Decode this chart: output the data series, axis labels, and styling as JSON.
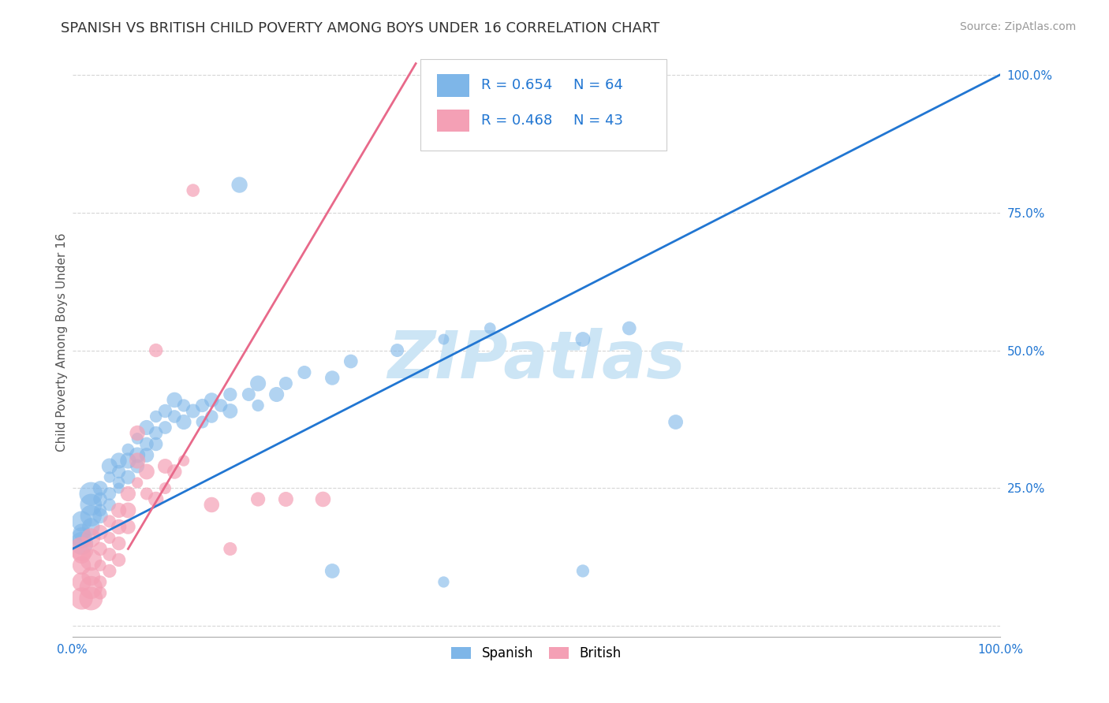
{
  "title": "SPANISH VS BRITISH CHILD POVERTY AMONG BOYS UNDER 16 CORRELATION CHART",
  "source": "Source: ZipAtlas.com",
  "ylabel": "Child Poverty Among Boys Under 16",
  "xlim": [
    0,
    1
  ],
  "ylim": [
    -0.02,
    1.05
  ],
  "xticks": [
    0.0,
    0.25,
    0.5,
    0.75,
    1.0
  ],
  "xticklabels": [
    "0.0%",
    "",
    "",
    "",
    "100.0%"
  ],
  "yticks": [
    0.0,
    0.25,
    0.5,
    0.75,
    1.0
  ],
  "yticklabels": [
    "",
    "25.0%",
    "50.0%",
    "75.0%",
    "100.0%"
  ],
  "spanish_color": "#7EB6E8",
  "british_color": "#F4A0B5",
  "spanish_R": 0.654,
  "spanish_N": 64,
  "british_R": 0.468,
  "british_N": 43,
  "watermark": "ZIPatlas",
  "watermark_color": "#cce5f5",
  "background_color": "#ffffff",
  "grid_color": "#cccccc",
  "blue_line_color": "#2176d2",
  "pink_line_color": "#e8698a",
  "tick_color_x": "#2176d2",
  "tick_color_y": "#2176d2",
  "spanish_line": [
    [
      0.0,
      0.14
    ],
    [
      1.0,
      1.0
    ]
  ],
  "british_line": [
    [
      0.06,
      0.14
    ],
    [
      0.37,
      1.02
    ]
  ],
  "spanish_scatter": [
    [
      0.01,
      0.15
    ],
    [
      0.01,
      0.17
    ],
    [
      0.01,
      0.19
    ],
    [
      0.01,
      0.16
    ],
    [
      0.02,
      0.18
    ],
    [
      0.02,
      0.2
    ],
    [
      0.02,
      0.22
    ],
    [
      0.02,
      0.24
    ],
    [
      0.03,
      0.21
    ],
    [
      0.03,
      0.23
    ],
    [
      0.03,
      0.25
    ],
    [
      0.03,
      0.2
    ],
    [
      0.04,
      0.24
    ],
    [
      0.04,
      0.27
    ],
    [
      0.04,
      0.22
    ],
    [
      0.04,
      0.29
    ],
    [
      0.05,
      0.26
    ],
    [
      0.05,
      0.28
    ],
    [
      0.05,
      0.3
    ],
    [
      0.05,
      0.25
    ],
    [
      0.06,
      0.27
    ],
    [
      0.06,
      0.3
    ],
    [
      0.06,
      0.32
    ],
    [
      0.07,
      0.29
    ],
    [
      0.07,
      0.31
    ],
    [
      0.07,
      0.34
    ],
    [
      0.08,
      0.33
    ],
    [
      0.08,
      0.36
    ],
    [
      0.08,
      0.31
    ],
    [
      0.09,
      0.35
    ],
    [
      0.09,
      0.38
    ],
    [
      0.09,
      0.33
    ],
    [
      0.1,
      0.36
    ],
    [
      0.1,
      0.39
    ],
    [
      0.11,
      0.38
    ],
    [
      0.11,
      0.41
    ],
    [
      0.12,
      0.37
    ],
    [
      0.12,
      0.4
    ],
    [
      0.13,
      0.39
    ],
    [
      0.14,
      0.37
    ],
    [
      0.14,
      0.4
    ],
    [
      0.15,
      0.38
    ],
    [
      0.15,
      0.41
    ],
    [
      0.16,
      0.4
    ],
    [
      0.17,
      0.42
    ],
    [
      0.17,
      0.39
    ],
    [
      0.19,
      0.42
    ],
    [
      0.2,
      0.44
    ],
    [
      0.2,
      0.4
    ],
    [
      0.22,
      0.42
    ],
    [
      0.23,
      0.44
    ],
    [
      0.25,
      0.46
    ],
    [
      0.28,
      0.45
    ],
    [
      0.3,
      0.48
    ],
    [
      0.35,
      0.5
    ],
    [
      0.4,
      0.52
    ],
    [
      0.45,
      0.54
    ],
    [
      0.55,
      0.52
    ],
    [
      0.6,
      0.54
    ],
    [
      0.65,
      0.37
    ],
    [
      0.18,
      0.8
    ],
    [
      0.28,
      0.1
    ],
    [
      0.4,
      0.08
    ],
    [
      0.55,
      0.1
    ]
  ],
  "british_scatter": [
    [
      0.01,
      0.14
    ],
    [
      0.01,
      0.11
    ],
    [
      0.01,
      0.08
    ],
    [
      0.01,
      0.05
    ],
    [
      0.01,
      0.13
    ],
    [
      0.02,
      0.16
    ],
    [
      0.02,
      0.12
    ],
    [
      0.02,
      0.09
    ],
    [
      0.02,
      0.07
    ],
    [
      0.02,
      0.05
    ],
    [
      0.03,
      0.17
    ],
    [
      0.03,
      0.14
    ],
    [
      0.03,
      0.11
    ],
    [
      0.03,
      0.08
    ],
    [
      0.03,
      0.06
    ],
    [
      0.04,
      0.19
    ],
    [
      0.04,
      0.16
    ],
    [
      0.04,
      0.13
    ],
    [
      0.04,
      0.1
    ],
    [
      0.05,
      0.21
    ],
    [
      0.05,
      0.18
    ],
    [
      0.05,
      0.15
    ],
    [
      0.05,
      0.12
    ],
    [
      0.06,
      0.24
    ],
    [
      0.06,
      0.21
    ],
    [
      0.06,
      0.18
    ],
    [
      0.07,
      0.35
    ],
    [
      0.07,
      0.3
    ],
    [
      0.07,
      0.26
    ],
    [
      0.08,
      0.28
    ],
    [
      0.08,
      0.24
    ],
    [
      0.09,
      0.5
    ],
    [
      0.09,
      0.23
    ],
    [
      0.1,
      0.29
    ],
    [
      0.1,
      0.25
    ],
    [
      0.11,
      0.28
    ],
    [
      0.12,
      0.3
    ],
    [
      0.13,
      0.79
    ],
    [
      0.15,
      0.22
    ],
    [
      0.17,
      0.14
    ],
    [
      0.2,
      0.23
    ],
    [
      0.23,
      0.23
    ],
    [
      0.27,
      0.23
    ]
  ],
  "title_fontsize": 13,
  "axis_label_fontsize": 11,
  "tick_fontsize": 11,
  "legend_fontsize": 13
}
